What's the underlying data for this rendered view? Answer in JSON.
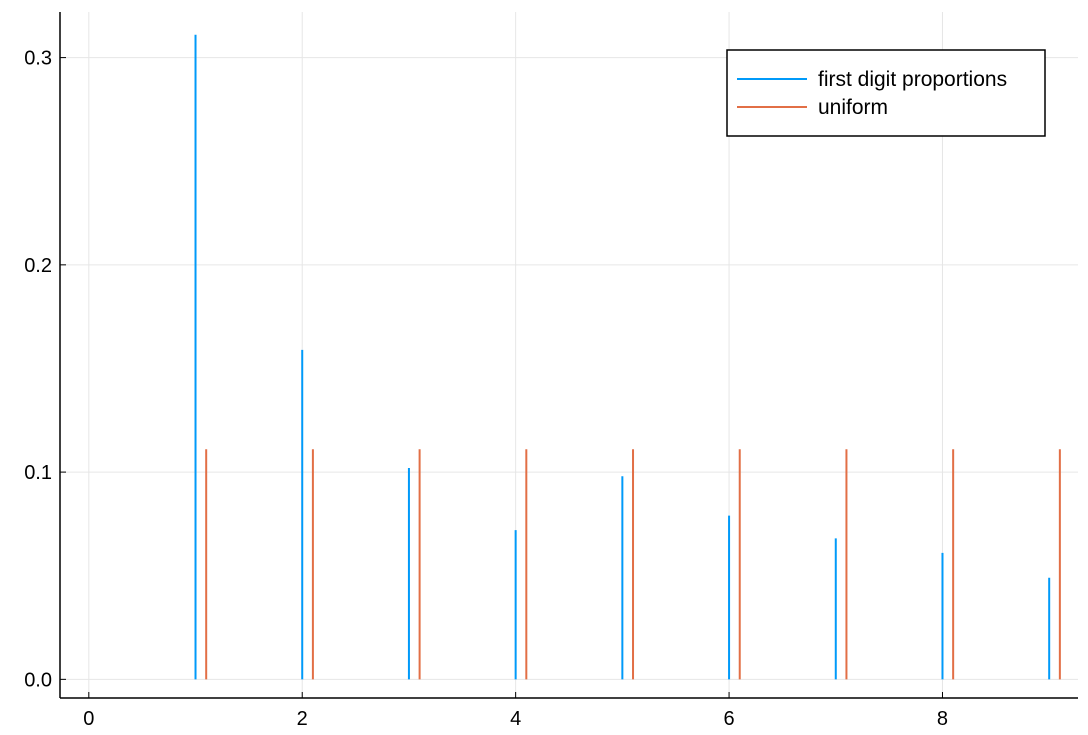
{
  "chart_data": {
    "type": "bar",
    "title": "",
    "xlabel": "",
    "ylabel": "",
    "xlim": [
      -0.27,
      9.27
    ],
    "ylim": [
      -0.009,
      0.322
    ],
    "x_ticks": [
      "0",
      "2",
      "4",
      "6",
      "8"
    ],
    "y_ticks": [
      "0.0",
      "0.1",
      "0.2",
      "0.3"
    ],
    "grid": true,
    "legend_position": "top-right",
    "series": [
      {
        "name": "first digit proportions",
        "color": "#009af9",
        "x": [
          0,
          1,
          2,
          3,
          4,
          5,
          6,
          7,
          8,
          9
        ],
        "values": [
          0.0,
          0.311,
          0.159,
          0.102,
          0.072,
          0.098,
          0.079,
          0.068,
          0.061,
          0.049
        ]
      },
      {
        "name": "uniform",
        "color": "#e26f46",
        "x": [
          1.1,
          2.1,
          3.1,
          4.1,
          5.1,
          6.1,
          7.1,
          8.1,
          9.1
        ],
        "values": [
          0.111,
          0.111,
          0.111,
          0.111,
          0.111,
          0.111,
          0.111,
          0.111,
          0.111
        ]
      }
    ]
  }
}
